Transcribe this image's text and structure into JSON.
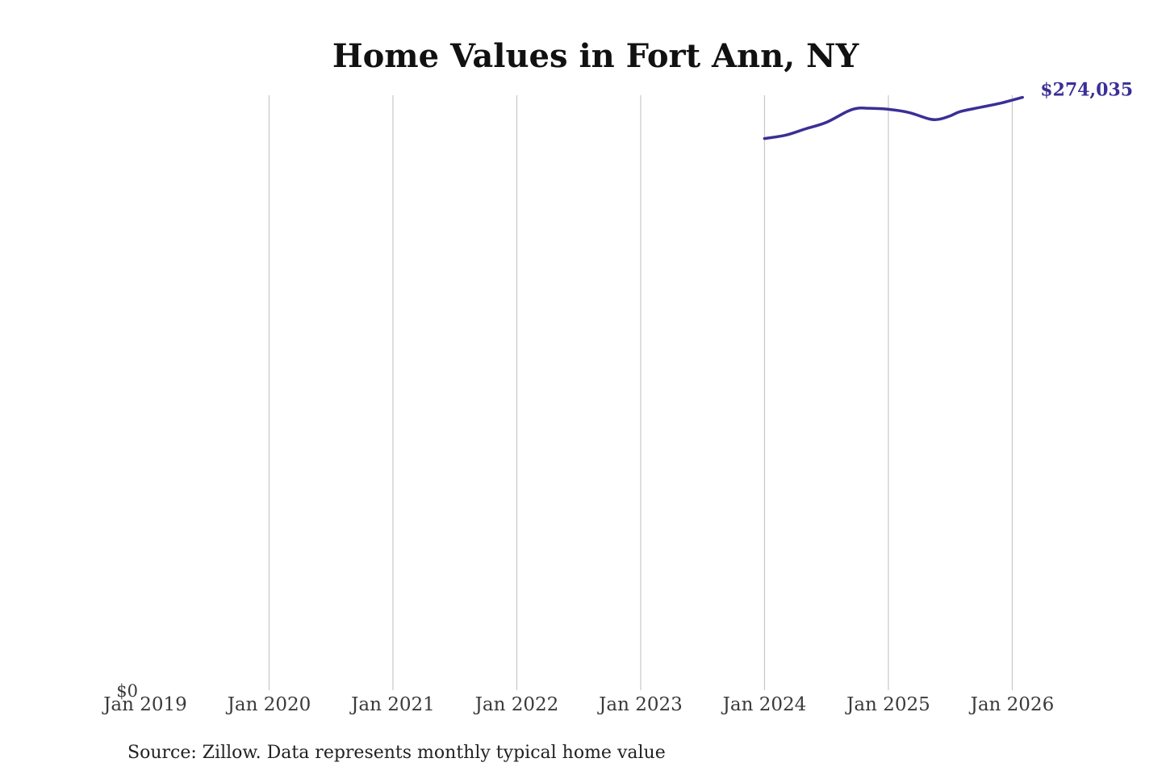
{
  "colors": {
    "line": "#3a2f96",
    "grid": "#c8c8c8",
    "background": "#ffffff"
  },
  "chart_data": {
    "type": "line",
    "title": "Home Values in Fort Ann, NY",
    "xlabel": "",
    "ylabel": "",
    "x_range": [
      "2019-01",
      "2026-03"
    ],
    "ylim": [
      0,
      275000
    ],
    "y_ticks": [
      {
        "value": 0,
        "label": "$0"
      }
    ],
    "x_ticks": [
      {
        "date": "2019-01",
        "label": "Jan 2019"
      },
      {
        "date": "2020-01",
        "label": "Jan 2020"
      },
      {
        "date": "2021-01",
        "label": "Jan 2021"
      },
      {
        "date": "2022-01",
        "label": "Jan 2022"
      },
      {
        "date": "2023-01",
        "label": "Jan 2023"
      },
      {
        "date": "2024-01",
        "label": "Jan 2024"
      },
      {
        "date": "2025-01",
        "label": "Jan 2025"
      },
      {
        "date": "2026-01",
        "label": "Jan 2026"
      }
    ],
    "grid": "vertical",
    "series": [
      {
        "points": [
          {
            "x": "2024-01",
            "y": 255000
          },
          {
            "x": "2024-03",
            "y": 256500
          },
          {
            "x": "2024-05",
            "y": 259500
          },
          {
            "x": "2024-07",
            "y": 262500
          },
          {
            "x": "2024-09",
            "y": 267500
          },
          {
            "x": "2024-10",
            "y": 269000
          },
          {
            "x": "2024-11",
            "y": 269000
          },
          {
            "x": "2025-01",
            "y": 268500
          },
          {
            "x": "2025-03",
            "y": 267000
          },
          {
            "x": "2025-05",
            "y": 264000
          },
          {
            "x": "2025-06",
            "y": 264000
          },
          {
            "x": "2025-07",
            "y": 265500
          },
          {
            "x": "2025-08",
            "y": 267500
          },
          {
            "x": "2025-10",
            "y": 269500
          },
          {
            "x": "2025-12",
            "y": 271500
          },
          {
            "x": "2026-02",
            "y": 274035
          }
        ],
        "end_label": "$274,035"
      }
    ]
  },
  "footer": {
    "source": "Source: Zillow. Data represents monthly typical home value"
  }
}
